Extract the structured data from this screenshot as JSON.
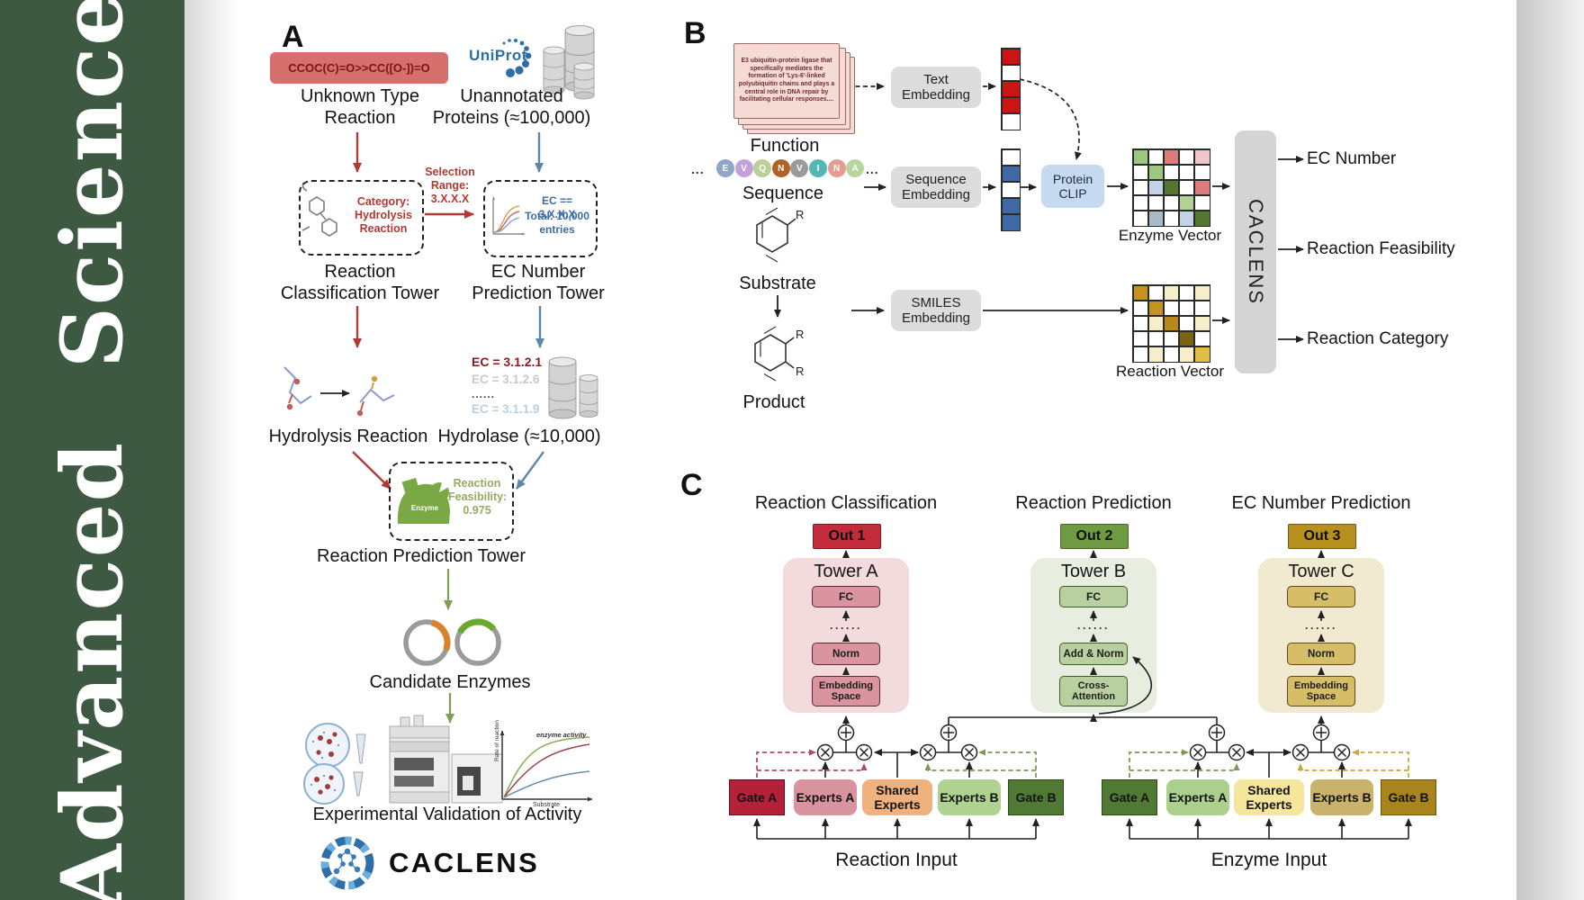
{
  "journal": {
    "vertical_title": "Advanced Science"
  },
  "colors": {
    "sidebar_green": "#3d5941",
    "uniprot_blue": "#2b6ea8",
    "red_accent": "#b03a35",
    "blue_accent": "#5b87ad",
    "green_accent": "#7f9f52",
    "out1_red": "#c22b3a",
    "out2_green": "#6e9b41",
    "out3_gold": "#b8901f"
  },
  "panelA": {
    "label": "A",
    "smiles": "CCOC(C)=O>>CC([O-])=O",
    "unknown_reaction": "Unknown Type Reaction",
    "uniprot": "UniProt",
    "unannotated": "Unannotated Proteins (≈100,000)",
    "selection": "Selection Range: 3.X.X.X",
    "category": "Category: Hydrolysis Reaction",
    "ec_range_line1": "EC == 3.X.X.X",
    "ec_range_line2": "Total: 10,000 entries",
    "tower_classification": "Reaction Classification Tower",
    "tower_ec": "EC Number Prediction Tower",
    "hydrolysis": "Hydrolysis Reaction",
    "ec_list": [
      "EC = 3.1.2.1",
      "EC = 3.1.2.6",
      "......",
      "EC = 3.1.1.9"
    ],
    "hydrolase": "Hydrolase (≈10,000)",
    "enzyme": "Enzyme",
    "feasibility": "Reaction Feasibility: 0.975",
    "tower_prediction": "Reaction Prediction Tower",
    "candidates": "Candidate Enzymes",
    "chart": {
      "curve_label": "enzyme activity",
      "ylabel": "Rate of reaction",
      "xlabel": "Substrate"
    },
    "validation": "Experimental Validation of Activity",
    "wordmark": "CACLENS"
  },
  "panelB": {
    "label": "B",
    "function_card": "E3 ubiquitin-protein ligase that specifically mediates the formation of 'Lys-6'-linked polyubiquitin chains and plays a central role in DNA repair by facilitating cellular responses....",
    "function_label": "Function",
    "ellipsis": "...",
    "sequence_letters": [
      {
        "ch": "E",
        "color": "#8fa6c4"
      },
      {
        "ch": "V",
        "color": "#c4a0dd"
      },
      {
        "ch": "Q",
        "color": "#b9cf96"
      },
      {
        "ch": "N",
        "color": "#b06226"
      },
      {
        "ch": "V",
        "color": "#9a9a9a"
      },
      {
        "ch": "I",
        "color": "#53b7b2"
      },
      {
        "ch": "N",
        "color": "#e59d92"
      },
      {
        "ch": "A",
        "color": "#b8d69c"
      }
    ],
    "sequence_label": "Sequence",
    "substrate_label": "Substrate",
    "product_label": "Product",
    "r_label": "R",
    "text_embedding": "Text Embedding",
    "sequence_embedding": "Sequence Embedding",
    "smiles_embedding": "SMILES Embedding",
    "protein_clip": "Protein CLIP",
    "enzyme_vector_label": "Enzyme Vector",
    "reaction_vector_label": "Reaction Vector",
    "caclens": "CACLENS",
    "outputs": [
      "EC Number",
      "Reaction Feasibility",
      "Reaction Category"
    ],
    "text_vec": [
      [
        "r"
      ],
      [
        "w"
      ],
      [
        "r"
      ],
      [
        "r"
      ],
      [
        "w"
      ]
    ],
    "seq_vec": [
      [
        "w"
      ],
      [
        "b"
      ],
      [
        "w"
      ],
      [
        "b"
      ],
      [
        "b"
      ]
    ],
    "enzyme_grid": [
      [
        "lg",
        "w",
        "sr",
        "w",
        "pk"
      ],
      [
        "w",
        "lg",
        "w",
        "w",
        "w"
      ],
      [
        "w",
        "lb",
        "dg",
        "w",
        "sr"
      ],
      [
        "w",
        "w",
        "w",
        "pg",
        "w"
      ],
      [
        "w",
        "gb",
        "w",
        "lb",
        "dg"
      ]
    ],
    "reaction_grid": [
      [
        "gd",
        "w",
        "cr",
        "w",
        "cr"
      ],
      [
        "w",
        "gd",
        "w",
        "w",
        "w"
      ],
      [
        "w",
        "cr",
        "g2",
        "w",
        "cr"
      ],
      [
        "w",
        "w",
        "w",
        "dd",
        "w"
      ],
      [
        "w",
        "cr",
        "w",
        "cr",
        "g3"
      ]
    ],
    "palette": {
      "w": "#ffffff",
      "r": "#cc1414",
      "b": "#3f69a6",
      "lg": "#9ec87f",
      "sr": "#de7b7b",
      "pk": "#f2c4cb",
      "lb": "#c2d3e8",
      "dg": "#55762f",
      "pg": "#b3d295",
      "gb": "#a9bac9",
      "gd": "#c3931d",
      "g2": "#b8891a",
      "dd": "#7a6410",
      "g3": "#e3bc45",
      "cr": "#f6eec9"
    }
  },
  "panelC": {
    "label": "C",
    "titles": [
      "Reaction Classification",
      "Reaction Prediction",
      "EC Number Prediction"
    ],
    "outs": [
      "Out 1",
      "Out 2",
      "Out 3"
    ],
    "towers": [
      {
        "name": "Tower A",
        "fc": "FC",
        "dots": "······",
        "mid": "Norm",
        "bottom": "Embedding Space"
      },
      {
        "name": "Tower B",
        "fc": "FC",
        "dots": "······",
        "mid": "Add & Norm",
        "bottom": "Cross-Attention"
      },
      {
        "name": "Tower C",
        "fc": "FC",
        "dots": "······",
        "mid": "Norm",
        "bottom": "Embedding Space"
      }
    ],
    "left_group": {
      "boxes": [
        "Gate A",
        "Experts A",
        "Shared Experts",
        "Experts B",
        "Gate B"
      ],
      "input": "Reaction Input"
    },
    "right_group": {
      "boxes": [
        "Gate A",
        "Experts A",
        "Shared Experts",
        "Experts B",
        "Gate B"
      ],
      "input": "Enzyme Input"
    }
  }
}
